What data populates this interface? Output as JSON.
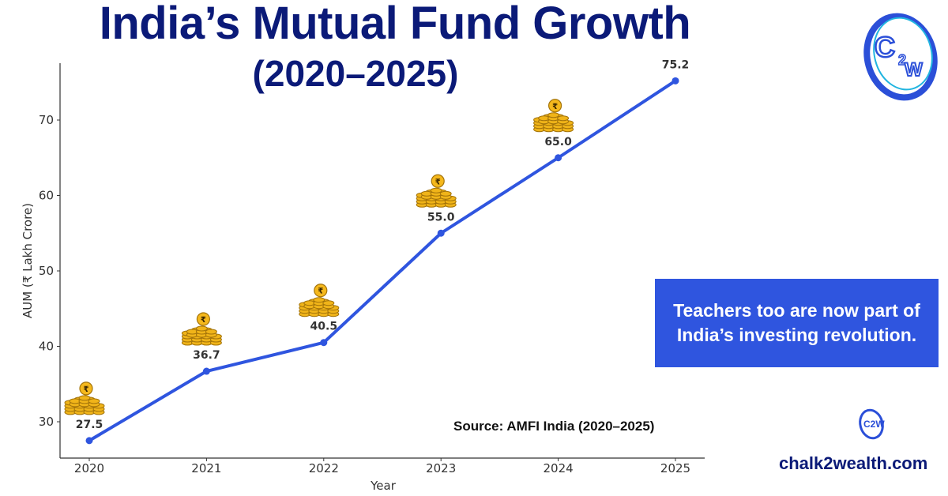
{
  "header": {
    "title": "India’s Mutual Fund Growth",
    "subtitle": "(2020–2025)"
  },
  "callout": {
    "text": "Teachers too are now part of India’s investing revolution."
  },
  "source": "Source: AMFI India (2020–2025)",
  "footer": {
    "website": "chalk2wealth.com",
    "logo_text": "C2W"
  },
  "colors": {
    "title": "#0b1a78",
    "line": "#2f55df",
    "callout_bg": "#2f55df",
    "coin": "#f0b419"
  },
  "chart_data": {
    "type": "line",
    "title": "India’s Mutual Fund Growth (2020–2025)",
    "xlabel": "Year",
    "ylabel": "AUM (₹ Lakh Crore)",
    "x": [
      "2020",
      "2021",
      "2022",
      "2023",
      "2024",
      "2025"
    ],
    "values": [
      27.5,
      36.7,
      40.5,
      55.0,
      65.0,
      75.2
    ],
    "data_labels": [
      "27.5",
      "36.7",
      "40.5",
      "55.0",
      "65.0",
      "75.2"
    ],
    "yticks": [
      30,
      40,
      50,
      60,
      70
    ],
    "ylim": [
      22.3,
      79.6
    ],
    "coin_markers_on": [
      "2020",
      "2021",
      "2022",
      "2023",
      "2024"
    ],
    "grid": false
  }
}
